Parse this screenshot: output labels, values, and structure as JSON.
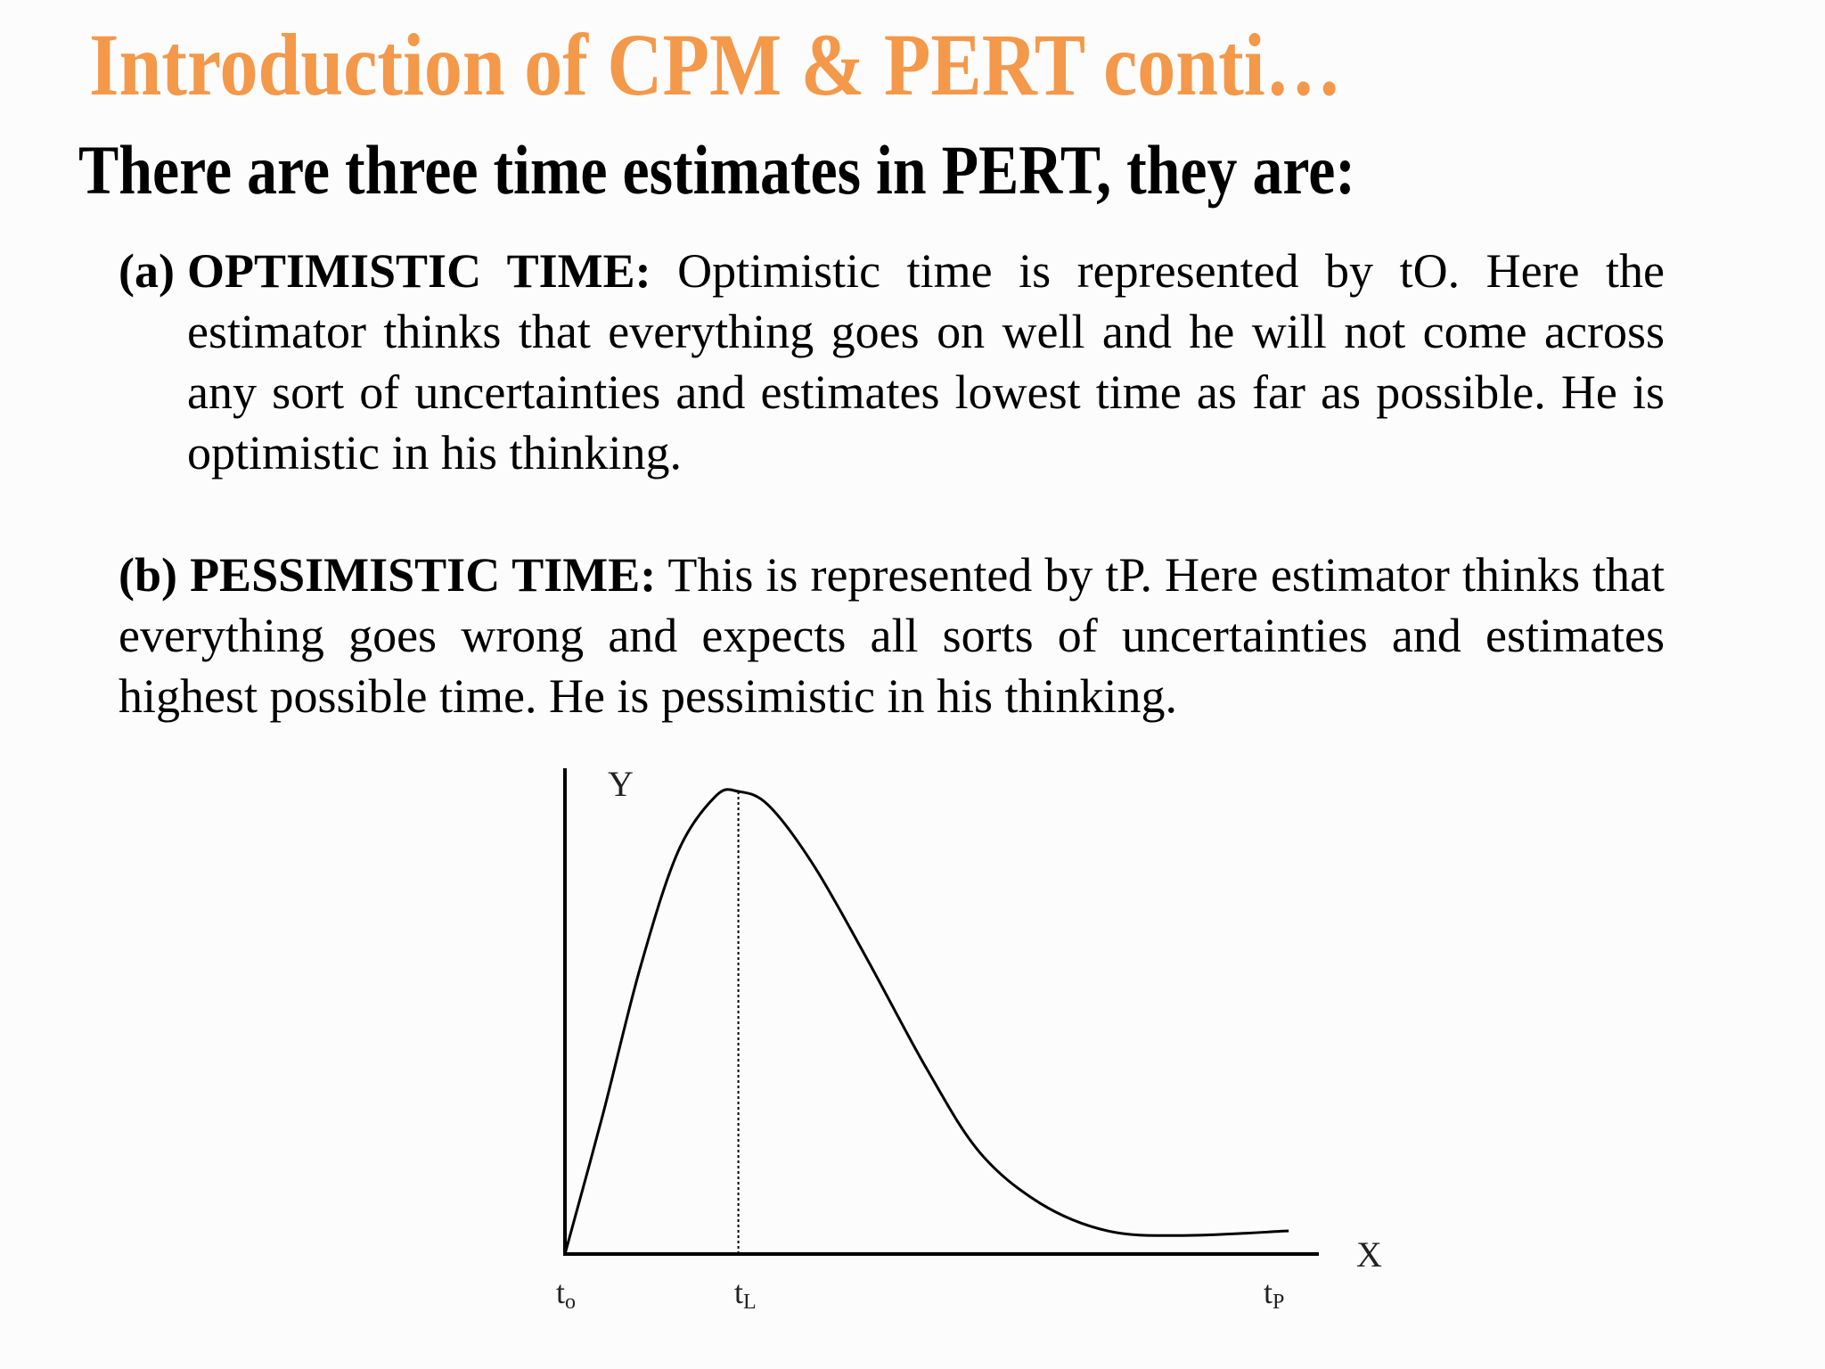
{
  "slide": {
    "title": "Introduction of CPM & PERT conti…",
    "subtitle": "There are three time estimates in PERT, they are:",
    "title_color": "#f4984a"
  },
  "items": [
    {
      "marker": "(a)",
      "label": "OPTIMISTIC TIME:",
      "text": " Optimistic time is represented by tO. Here the estimator thinks that everything goes on well and he will not come across any sort of uncertainties and estimates lowest time as far as possible. He is optimistic in his thinking."
    },
    {
      "marker": "(b)",
      "label": "PESSIMISTIC TIME:",
      "text": " This is represented by tP. Here estimator thinks that everything goes wrong and expects all sorts of uncertainties and estimates highest possible time. He is pessimistic in his thinking."
    }
  ],
  "chart_data": {
    "type": "line",
    "title": "",
    "xlabel": "X",
    "ylabel": "Y",
    "description": "Right-skewed (beta-like) time distribution curve; peak at most likely time tL, dotted vertical line from peak to x-axis",
    "tick_labels": [
      {
        "base": "t",
        "sub": "o",
        "x": 0
      },
      {
        "base": "t",
        "sub": "L",
        "x": 0.23
      },
      {
        "base": "t",
        "sub": "P",
        "x": 0.94
      }
    ],
    "x": [
      0,
      0.05,
      0.1,
      0.15,
      0.2,
      0.23,
      0.27,
      0.33,
      0.4,
      0.48,
      0.55,
      0.63,
      0.72,
      0.82,
      0.96
    ],
    "values": [
      0,
      0.3,
      0.62,
      0.87,
      0.99,
      1.0,
      0.97,
      0.84,
      0.64,
      0.4,
      0.22,
      0.11,
      0.05,
      0.04,
      0.05
    ],
    "peak": {
      "x": 0.23,
      "y": 1.0,
      "label": "tL"
    },
    "xlim": [
      0,
      1
    ],
    "ylim": [
      0,
      1.05
    ],
    "grid": false,
    "legend": null
  }
}
